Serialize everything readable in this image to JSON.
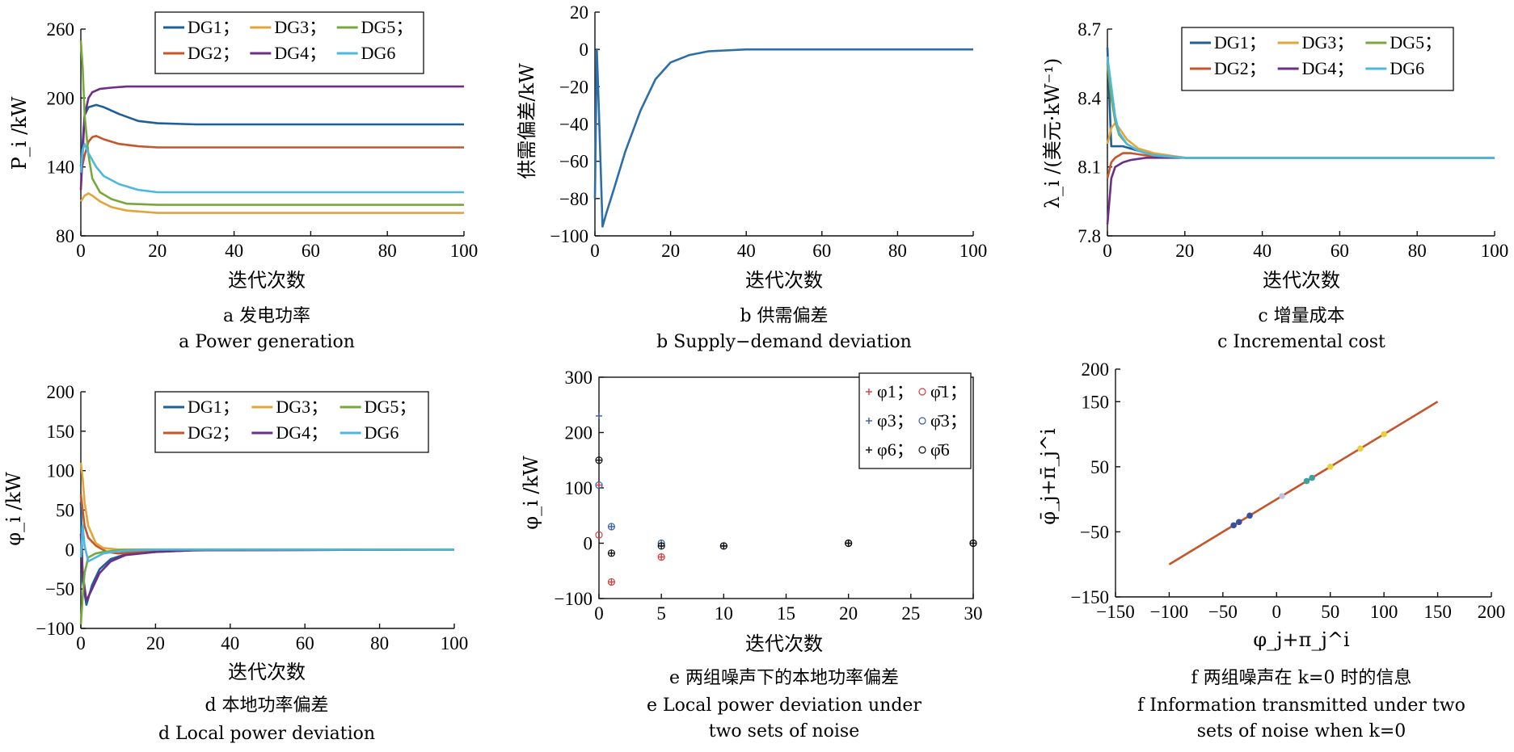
{
  "colors": {
    "DG1": "#1f5f97",
    "DG2": "#c5562b",
    "DG3": "#e2a43b",
    "DG4": "#6d2e86",
    "DG5": "#78a83b",
    "DG6": "#4cb8dd",
    "b_line": "#2e6ea6",
    "f_line": "#c5562b"
  },
  "chart_data": [
    {
      "id": "a",
      "type": "line",
      "ylabel": "P_i /kW",
      "xlabel": "迭代次数",
      "caption_cn": "a 发电功率",
      "caption_en": "a  Power generation",
      "xlim": [
        0,
        100
      ],
      "ylim": [
        80,
        260
      ],
      "xticks": [
        "0",
        "20",
        "40",
        "60",
        "80",
        "100"
      ],
      "yticks": [
        "80",
        "140",
        "200",
        "260"
      ],
      "legend": [
        "DG1；",
        "DG3；",
        "DG5；",
        "DG2；",
        "DG4；",
        "DG6"
      ],
      "series": [
        {
          "name": "DG1",
          "x": [
            0,
            1,
            2,
            4,
            6,
            10,
            15,
            20,
            30,
            40,
            100
          ],
          "y": [
            140,
            185,
            192,
            194,
            192,
            186,
            180,
            178,
            177,
            177,
            177
          ]
        },
        {
          "name": "DG2",
          "x": [
            0,
            1,
            2,
            3,
            4,
            6,
            10,
            15,
            20,
            30,
            100
          ],
          "y": [
            135,
            150,
            162,
            166,
            167,
            164,
            160,
            158,
            157,
            157,
            157
          ]
        },
        {
          "name": "DG3",
          "x": [
            0,
            1,
            2,
            3,
            5,
            8,
            12,
            20,
            30,
            100
          ],
          "y": [
            110,
            115,
            117,
            115,
            110,
            105,
            102,
            100,
            100,
            100
          ]
        },
        {
          "name": "DG4",
          "x": [
            0,
            1,
            2,
            3,
            5,
            8,
            12,
            20,
            30,
            100
          ],
          "y": [
            120,
            185,
            200,
            205,
            208,
            209,
            210,
            210,
            210,
            210
          ]
        },
        {
          "name": "DG5",
          "x": [
            0,
            0.5,
            1,
            2,
            3,
            5,
            8,
            12,
            20,
            30,
            100
          ],
          "y": [
            250,
            225,
            185,
            150,
            130,
            118,
            112,
            108,
            107,
            107,
            107
          ]
        },
        {
          "name": "DG6",
          "x": [
            0,
            0.5,
            1,
            2,
            4,
            6,
            10,
            15,
            20,
            30,
            100
          ],
          "y": [
            135,
            155,
            160,
            152,
            140,
            132,
            125,
            120,
            118,
            118,
            118
          ]
        }
      ]
    },
    {
      "id": "b",
      "type": "line",
      "ylabel": "供需偏差/kW",
      "xlabel": "迭代次数",
      "caption_cn": "b 供需偏差",
      "caption_en": "b  Supply−demand deviation",
      "xlim": [
        0,
        100
      ],
      "ylim": [
        -100,
        20
      ],
      "xticks": [
        "0",
        "20",
        "40",
        "60",
        "80",
        "100"
      ],
      "yticks": [
        "−100",
        "−80",
        "−60",
        "−40",
        "−20",
        "0",
        "20"
      ],
      "series": [
        {
          "name": "",
          "x": [
            0,
            0.5,
            1,
            2,
            3,
            5,
            8,
            12,
            16,
            20,
            25,
            30,
            40,
            50,
            100
          ],
          "y": [
            -80,
            0,
            -30,
            -95,
            -88,
            -75,
            -55,
            -33,
            -16,
            -7,
            -3,
            -1,
            0,
            0,
            0
          ]
        }
      ]
    },
    {
      "id": "c",
      "type": "line",
      "ylabel": "λ_i /(美元·kW⁻¹)",
      "xlabel": "迭代次数",
      "caption_cn": "c 增量成本",
      "caption_en": "c  Incremental cost",
      "xlim": [
        0,
        100
      ],
      "ylim": [
        7.8,
        8.7
      ],
      "xticks": [
        "0",
        "20",
        "40",
        "60",
        "80",
        "100"
      ],
      "yticks": [
        "7.8",
        "8.1",
        "8.4",
        "8.7"
      ],
      "legend": [
        "DG1；",
        "DG3；",
        "DG5；",
        "DG2；",
        "DG4；",
        "DG6"
      ],
      "series": [
        {
          "name": "DG1",
          "x": [
            0,
            1,
            2,
            4,
            6,
            10,
            20,
            100
          ],
          "y": [
            8.62,
            8.19,
            8.19,
            8.19,
            8.18,
            8.16,
            8.14,
            8.14
          ]
        },
        {
          "name": "DG2",
          "x": [
            0,
            1,
            2,
            4,
            6,
            10,
            20,
            100
          ],
          "y": [
            8.05,
            8.12,
            8.14,
            8.16,
            8.16,
            8.15,
            8.14,
            8.14
          ]
        },
        {
          "name": "DG3",
          "x": [
            0,
            1,
            2,
            3,
            5,
            8,
            12,
            20,
            100
          ],
          "y": [
            8.2,
            8.27,
            8.29,
            8.27,
            8.22,
            8.18,
            8.16,
            8.14,
            8.14
          ]
        },
        {
          "name": "DG4",
          "x": [
            0,
            1,
            2,
            4,
            6,
            10,
            20,
            100
          ],
          "y": [
            7.85,
            8.05,
            8.1,
            8.12,
            8.13,
            8.14,
            8.14,
            8.14
          ]
        },
        {
          "name": "DG5",
          "x": [
            0,
            1,
            2,
            3,
            5,
            8,
            12,
            20,
            100
          ],
          "y": [
            8.55,
            8.4,
            8.3,
            8.24,
            8.2,
            8.17,
            8.15,
            8.14,
            8.14
          ]
        },
        {
          "name": "DG6",
          "x": [
            0,
            1,
            2,
            3,
            5,
            8,
            12,
            20,
            100
          ],
          "y": [
            8.58,
            8.45,
            8.32,
            8.25,
            8.2,
            8.17,
            8.15,
            8.14,
            8.14
          ]
        }
      ]
    },
    {
      "id": "d",
      "type": "line",
      "ylabel": "φ_i /kW",
      "xlabel": "迭代次数",
      "caption_cn": "d 本地功率偏差",
      "caption_en": "d  Local power deviation",
      "xlim": [
        0,
        100
      ],
      "ylim": [
        -100,
        200
      ],
      "xticks": [
        "0",
        "20",
        "40",
        "60",
        "80",
        "100"
      ],
      "yticks": [
        "−100",
        "−50",
        "0",
        "50",
        "100",
        "150",
        "200"
      ],
      "legend": [
        "DG1；",
        "DG3；",
        "DG5；",
        "DG2；",
        "DG4；",
        "DG6"
      ],
      "series": [
        {
          "name": "DG1",
          "x": [
            0,
            0.5,
            1.5,
            3,
            5,
            8,
            12,
            20,
            30,
            100
          ],
          "y": [
            60,
            -40,
            -70,
            -45,
            -25,
            -12,
            -6,
            -3,
            -1,
            0
          ]
        },
        {
          "name": "DG2",
          "x": [
            0,
            0.5,
            1,
            2,
            4,
            7,
            10,
            15,
            20,
            100
          ],
          "y": [
            70,
            50,
            30,
            15,
            5,
            -3,
            -5,
            -3,
            -1,
            0
          ]
        },
        {
          "name": "DG3",
          "x": [
            0,
            0.5,
            1,
            2,
            4,
            6,
            10,
            20,
            100
          ],
          "y": [
            110,
            90,
            60,
            30,
            8,
            2,
            0,
            0,
            0
          ]
        },
        {
          "name": "DG4",
          "x": [
            0,
            0.5,
            1.5,
            3,
            5,
            8,
            12,
            20,
            30,
            100
          ],
          "y": [
            20,
            -30,
            -65,
            -50,
            -30,
            -15,
            -7,
            -3,
            -1,
            0
          ]
        },
        {
          "name": "DG5",
          "x": [
            0,
            0.5,
            1,
            2,
            4,
            6,
            10,
            20,
            100
          ],
          "y": [
            -95,
            -60,
            -30,
            -10,
            -5,
            -3,
            -1,
            0,
            0
          ]
        },
        {
          "name": "DG6",
          "x": [
            0,
            0.5,
            1,
            2,
            4,
            6,
            10,
            20,
            100
          ],
          "y": [
            -10,
            30,
            5,
            -15,
            -10,
            -5,
            -2,
            0,
            0
          ]
        }
      ]
    },
    {
      "id": "e",
      "type": "scatter",
      "ylabel": "φ_i /kW",
      "xlabel": "迭代次数",
      "caption_cn": "e 两组噪声下的本地功率偏差",
      "caption_en_1": "e  Local power deviation under",
      "caption_en_2": "two sets of noise",
      "xlim": [
        0,
        30
      ],
      "ylim": [
        -100,
        300
      ],
      "xticks": [
        "0",
        "5",
        "10",
        "15",
        "20",
        "25",
        "30"
      ],
      "yticks": [
        "−100",
        "0",
        "100",
        "200",
        "300"
      ],
      "legend": [
        "φ1；",
        "φ̄1；",
        "φ3；",
        "φ̄3；",
        "φ6；",
        "φ̄6"
      ],
      "series": [
        {
          "name": "φ1",
          "marker": "+",
          "color": "#d04040",
          "x": [
            0,
            1,
            5,
            10,
            20,
            30
          ],
          "y": [
            105,
            -70,
            -25,
            -5,
            0,
            0
          ]
        },
        {
          "name": "φ̄1",
          "marker": "o",
          "color": "#d04040",
          "x": [
            0,
            1,
            5,
            10,
            20,
            30
          ],
          "y": [
            15,
            -70,
            -25,
            -5,
            0,
            0
          ]
        },
        {
          "name": "φ3",
          "marker": "+",
          "color": "#3a5ea8",
          "x": [
            0,
            1,
            5,
            10,
            20,
            30
          ],
          "y": [
            230,
            30,
            0,
            -5,
            0,
            0
          ]
        },
        {
          "name": "φ̄3",
          "marker": "o",
          "color": "#3a5ea8",
          "x": [
            0,
            1,
            5,
            10,
            20,
            30
          ],
          "y": [
            105,
            30,
            0,
            -5,
            0,
            0
          ]
        },
        {
          "name": "φ6",
          "marker": "+",
          "color": "#111111",
          "x": [
            0,
            1,
            5,
            10,
            20,
            30
          ],
          "y": [
            150,
            -18,
            -5,
            -5,
            0,
            0
          ]
        },
        {
          "name": "φ̄6",
          "marker": "o",
          "color": "#111111",
          "x": [
            0,
            1,
            5,
            10,
            20,
            30
          ],
          "y": [
            150,
            -18,
            -5,
            -5,
            0,
            0
          ]
        }
      ]
    },
    {
      "id": "f",
      "type": "scatter",
      "ylabel": "φ̄_j+π̄_j^i",
      "xlabel": "φ_j+π_j^i",
      "caption_cn": "f 两组噪声在 k=0 时的信息",
      "caption_en_1": "f  Information transmitted under two",
      "caption_en_2": "sets of noise when k=0",
      "xlim": [
        -150,
        200
      ],
      "ylim": [
        -150,
        200
      ],
      "xticks": [
        "−150",
        "−100",
        "−50",
        "0",
        "50",
        "100",
        "150",
        "200"
      ],
      "yticks": [
        "−150",
        "−50",
        "50",
        "150",
        "200"
      ],
      "line": {
        "x": [
          -100,
          150
        ],
        "y": [
          -100,
          150
        ]
      },
      "points": [
        {
          "x": -40,
          "y": -40,
          "color": "#3a4fa0"
        },
        {
          "x": -35,
          "y": -35,
          "color": "#3a4fa0"
        },
        {
          "x": -25,
          "y": -25,
          "color": "#3a4fa0"
        },
        {
          "x": 5,
          "y": 5,
          "color": "#c0c0e0"
        },
        {
          "x": 28,
          "y": 28,
          "color": "#3aa0a0"
        },
        {
          "x": 33,
          "y": 33,
          "color": "#3aa0a0"
        },
        {
          "x": 50,
          "y": 50,
          "color": "#e8d040"
        },
        {
          "x": 78,
          "y": 78,
          "color": "#e8d040"
        },
        {
          "x": 100,
          "y": 100,
          "color": "#e8d040"
        }
      ]
    }
  ]
}
